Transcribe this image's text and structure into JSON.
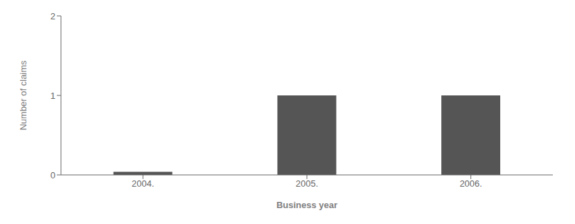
{
  "chart_data": {
    "type": "bar",
    "categories": [
      "2004.",
      "2005.",
      "2006."
    ],
    "values": [
      0.04,
      1.0,
      1.0
    ],
    "color": "#555555",
    "xlabel": "Business year",
    "ylabel": "Number of claims",
    "ylim": [
      0,
      2
    ],
    "yticks": [
      0,
      1,
      2
    ],
    "grid": false
  }
}
